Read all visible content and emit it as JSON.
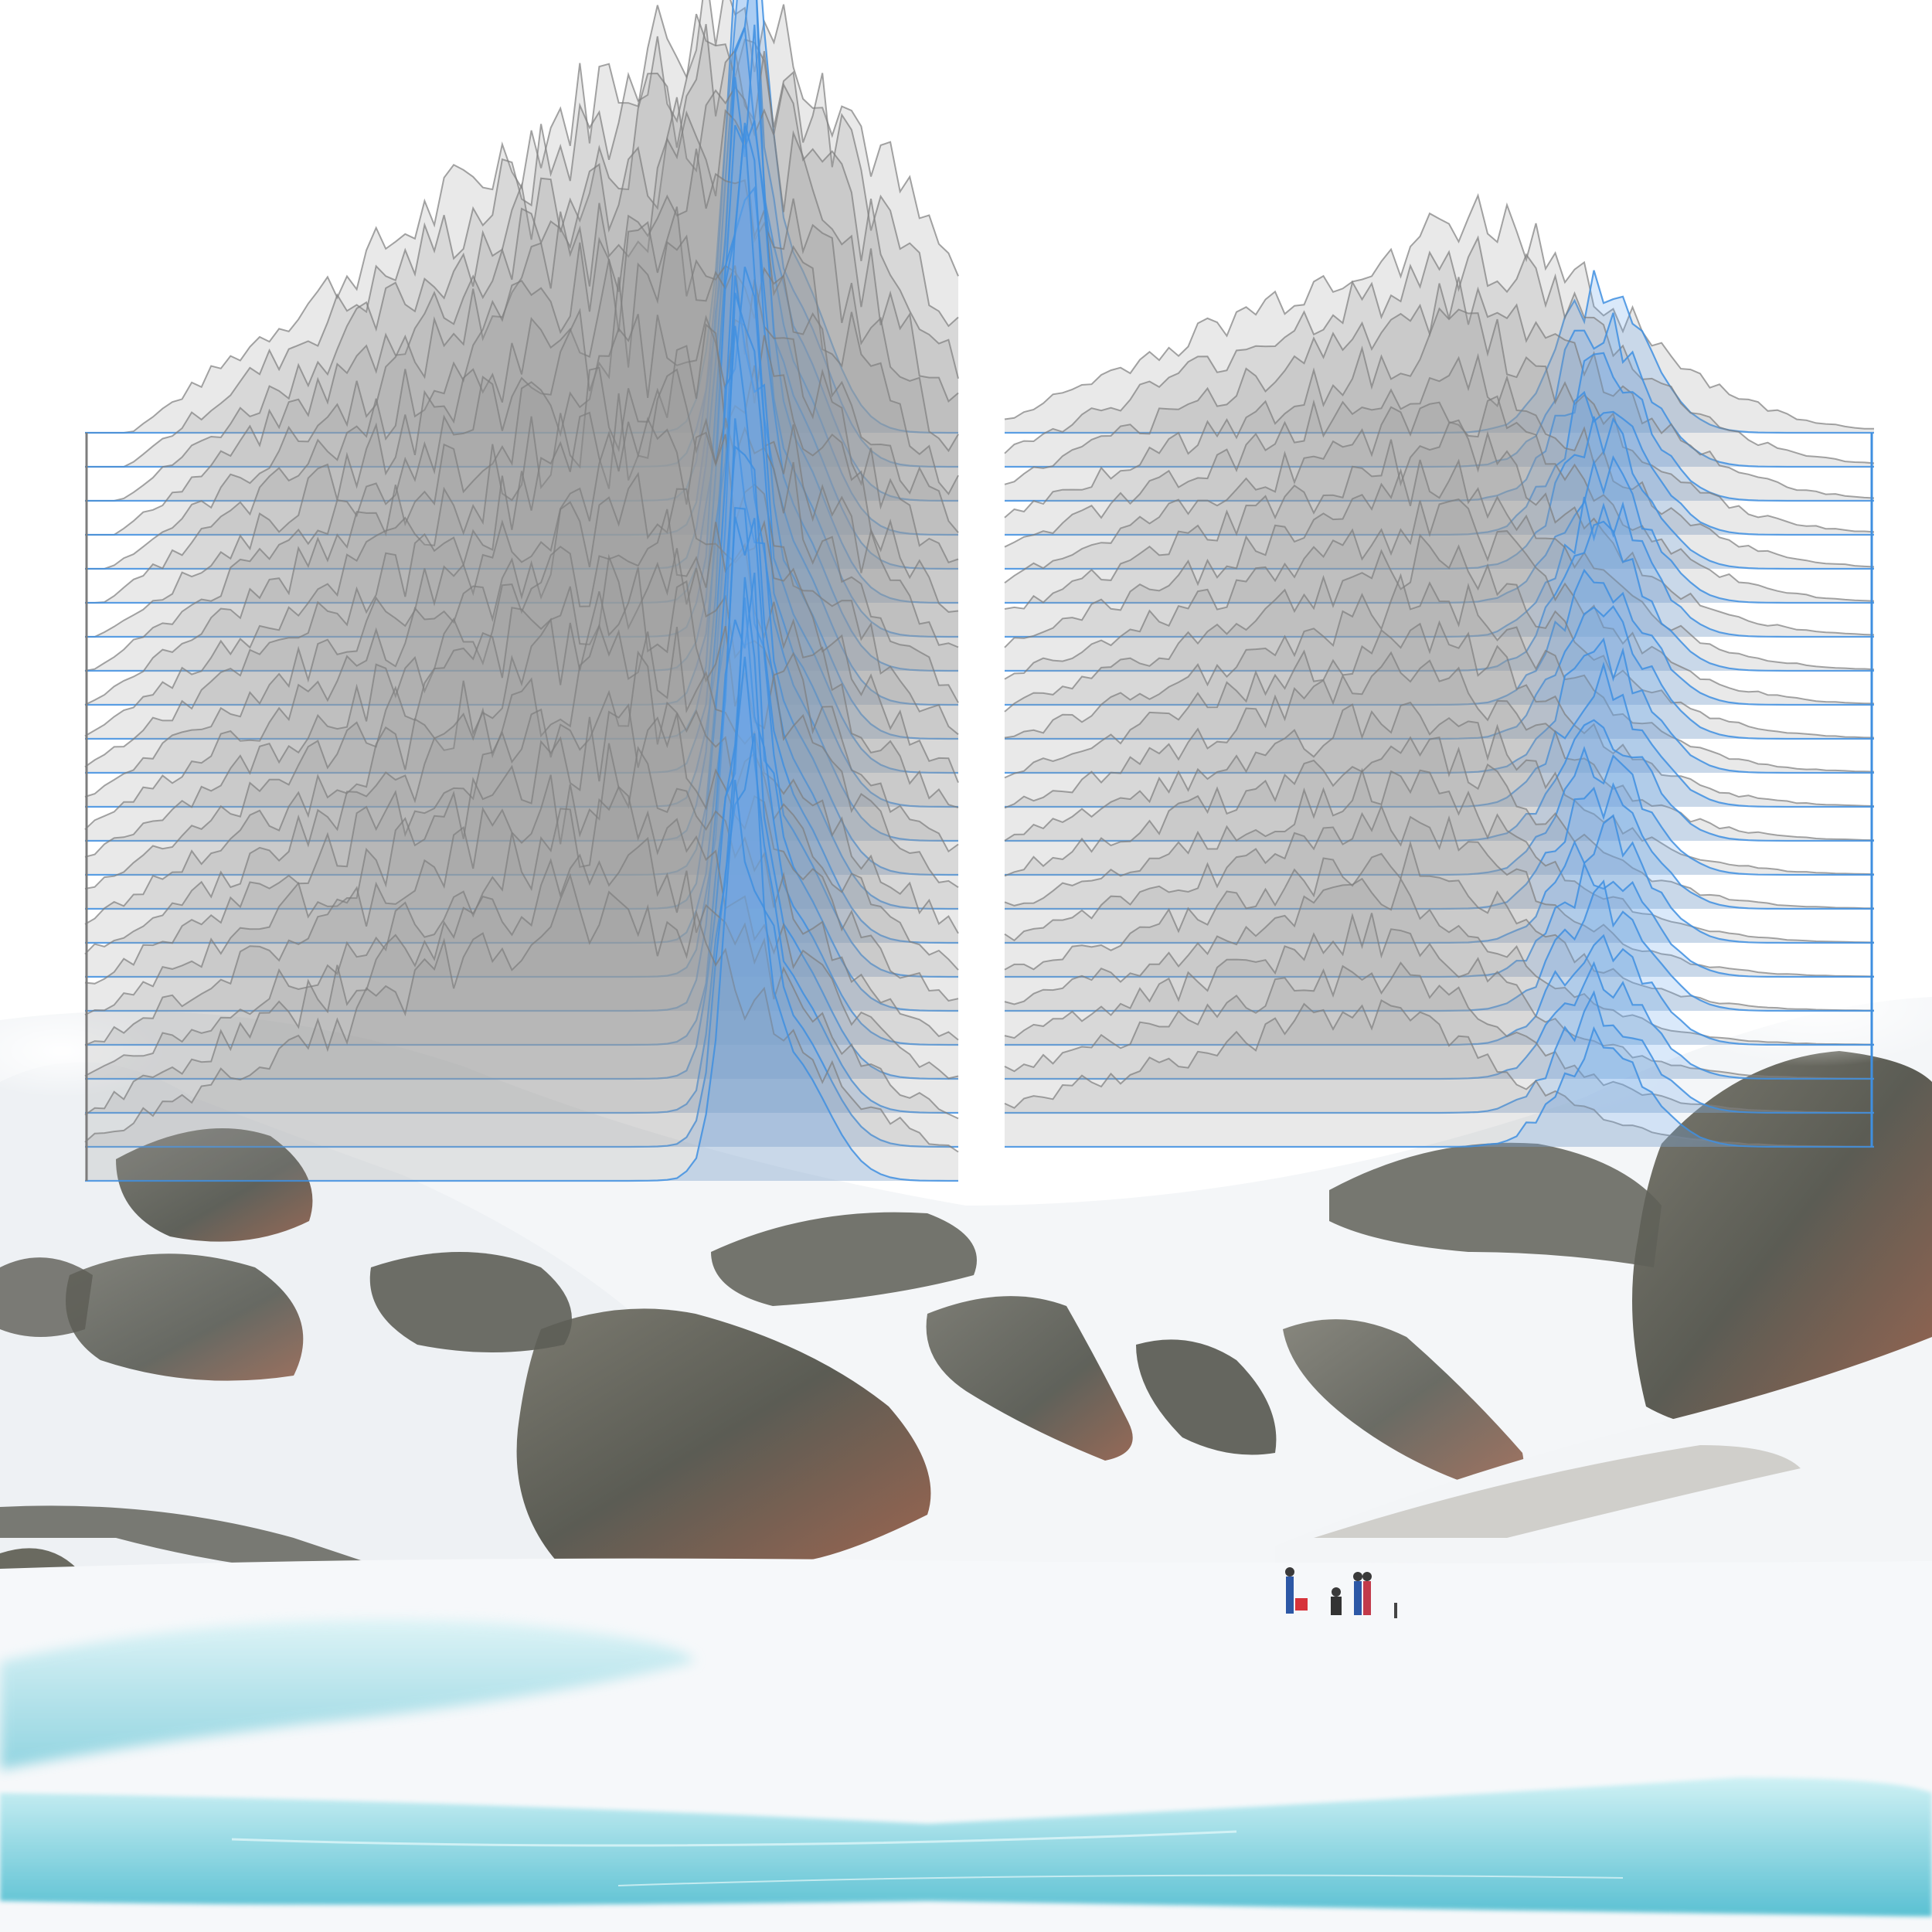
{
  "artwork": {
    "kind": "ridgeline-over-landscape",
    "text": []
  },
  "colors": {
    "background": "#ffffff",
    "gray_fill": "#9c9c9c",
    "gray_line": "#7d7d7d",
    "blue_fill": "#6aa8ea",
    "blue_line": "#3f8fe0",
    "snow": "#f7f9fb",
    "rock_dark": "#4f5149",
    "rock_mid": "#6e6e65",
    "rock_rust": "#8c5a45",
    "ice_light": "#9fe0ea",
    "ice_deep": "#3fb7cc"
  },
  "panels": [
    {
      "id": "left",
      "ridge_count": 23,
      "gray_peak": 1.0,
      "blue_peak": 1.25,
      "blue_sharpness": "high"
    },
    {
      "id": "right",
      "ridge_count": 22,
      "gray_peak": 0.55,
      "blue_peak": 0.35,
      "blue_sharpness": "medium"
    }
  ],
  "landscape": {
    "elements": [
      "snowy-mountains",
      "rock-outcrops",
      "frozen-lake",
      "people-group"
    ],
    "people_count": 5
  }
}
